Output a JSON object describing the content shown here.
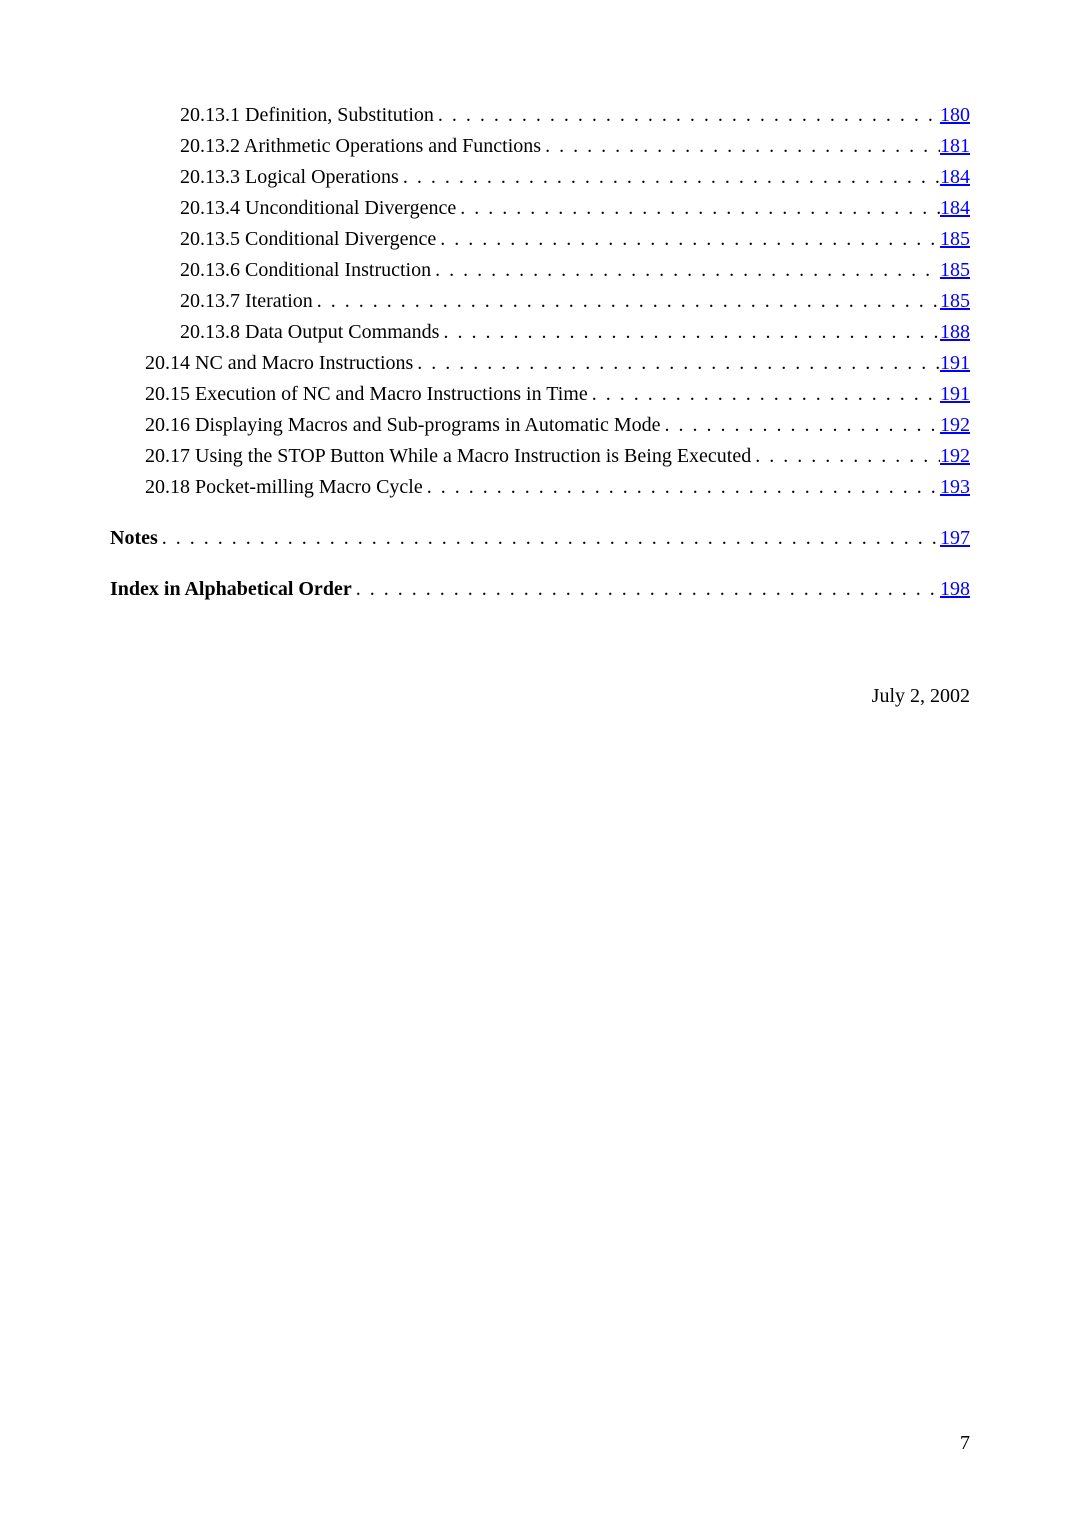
{
  "link_color": "#0000ff",
  "entries": [
    {
      "indent": 2,
      "bold": false,
      "label": "20.13.1 Definition, Substitution",
      "page": "180"
    },
    {
      "indent": 2,
      "bold": false,
      "label": "20.13.2 Arithmetic Operations and Functions",
      "page": "181"
    },
    {
      "indent": 2,
      "bold": false,
      "label": "20.13.3 Logical Operations",
      "page": "184"
    },
    {
      "indent": 2,
      "bold": false,
      "label": "20.13.4 Unconditional Divergence",
      "page": "184"
    },
    {
      "indent": 2,
      "bold": false,
      "label": "20.13.5 Conditional Divergence",
      "page": "185"
    },
    {
      "indent": 2,
      "bold": false,
      "label": "20.13.6 Conditional Instruction",
      "page": "185"
    },
    {
      "indent": 2,
      "bold": false,
      "label": "20.13.7 Iteration",
      "page": "185"
    },
    {
      "indent": 2,
      "bold": false,
      "label": "20.13.8 Data Output Commands",
      "page": "188"
    },
    {
      "indent": 1,
      "bold": false,
      "label": "20.14 NC and Macro Instructions",
      "page": "191"
    },
    {
      "indent": 1,
      "bold": false,
      "label": "20.15 Execution of NC and Macro Instructions in Time",
      "page": "191"
    },
    {
      "indent": 1,
      "bold": false,
      "label": "20.16 Displaying Macros and Sub-programs in Automatic Mode",
      "page": "192"
    },
    {
      "indent": 1,
      "bold": false,
      "label": "20.17 Using the STOP Button While a Macro Instruction is Being Executed",
      "page": "192"
    },
    {
      "indent": 1,
      "bold": false,
      "label": "20.18 Pocket-milling Macro Cycle",
      "page": "193"
    },
    {
      "indent": -1
    },
    {
      "indent": 0,
      "bold": true,
      "label": "Notes",
      "page": "197"
    },
    {
      "indent": -1
    },
    {
      "indent": 0,
      "bold": true,
      "label": "Index in Alphabetical Order",
      "page": "198"
    }
  ],
  "date_text": "July 2, 2002",
  "page_number": "7"
}
